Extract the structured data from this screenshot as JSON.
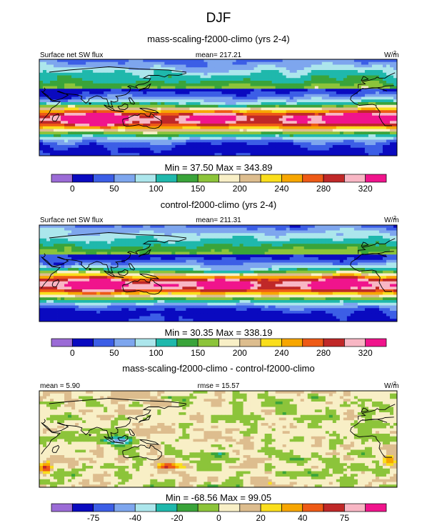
{
  "title": "DJF",
  "palette": {
    "flux": [
      "#9b6bd6",
      "#0a0ac0",
      "#3c5ee6",
      "#7ea6ee",
      "#ace6ec",
      "#1fb8ac",
      "#3aa43a",
      "#8cc43a",
      "#f8efc6",
      "#ddbd8e",
      "#fade1c",
      "#f7a600",
      "#ee5a16",
      "#c02828",
      "#f8b6c4",
      "#f0148c"
    ],
    "diff": [
      "#9b6bd6",
      "#0a0ac0",
      "#3c5ee6",
      "#7ea6ee",
      "#ace6ec",
      "#1fb8ac",
      "#3aa43a",
      "#8cc43a",
      "#f8efc6",
      "#ddbd8e",
      "#fade1c",
      "#f7a600",
      "#ee5a16",
      "#c02828",
      "#f8b6c4",
      "#f0148c"
    ],
    "coast": "#000000"
  },
  "chart_data": [
    {
      "type": "heatmap",
      "subtitle": "mass-scaling-f2000-climo (yrs 2-4)",
      "left_label": "Surface net SW flux",
      "center_label": "mean= 217.21",
      "units": "W/m",
      "units_sup": "2",
      "minmax": "Min =  37.50 Max = 343.89",
      "min": 37.5,
      "max": 343.89,
      "mean": 217.21,
      "colorbar": {
        "levels": [
          0,
          25,
          50,
          75,
          100,
          125,
          150,
          175,
          200,
          220,
          240,
          260,
          280,
          300,
          320
        ],
        "labels": [
          "0",
          "50",
          "100",
          "150",
          "200",
          "240",
          "280",
          "320"
        ]
      },
      "seed": 11
    },
    {
      "type": "heatmap",
      "subtitle": "control-f2000-climo (yrs 2-4)",
      "left_label": "Surface net SW flux",
      "center_label": "mean= 211.31",
      "units": "W/m",
      "units_sup": "2",
      "minmax": "Min =  30.35 Max = 338.19",
      "min": 30.35,
      "max": 338.19,
      "mean": 211.31,
      "colorbar": {
        "levels": [
          0,
          25,
          50,
          75,
          100,
          125,
          150,
          175,
          200,
          220,
          240,
          260,
          280,
          300,
          320
        ],
        "labels": [
          "0",
          "50",
          "100",
          "150",
          "200",
          "240",
          "280",
          "320"
        ]
      },
      "seed": 23
    },
    {
      "type": "heatmap",
      "subtitle": "mass-scaling-f2000-climo - control-f2000-climo",
      "left_label": "mean =   5.90",
      "center_label": "rmse =  15.57",
      "units": "W/m",
      "units_sup": "2",
      "minmax": "Min = -68.56 Max =  99.05",
      "min": -68.56,
      "max": 99.05,
      "mean": 5.9,
      "rmse": 15.57,
      "colorbar": {
        "levels": [
          -100,
          -75,
          -50,
          -40,
          -30,
          -20,
          -10,
          0,
          10,
          20,
          30,
          40,
          50,
          75,
          100
        ],
        "labels": [
          "-75",
          "-40",
          "-20",
          "0",
          "20",
          "40",
          "75"
        ]
      },
      "seed": 37
    }
  ]
}
